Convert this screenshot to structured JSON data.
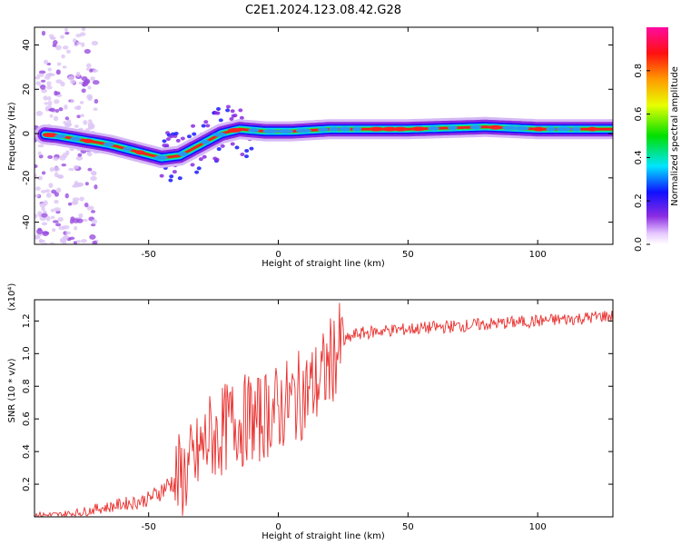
{
  "title": "C2E1.2024.123.08.42.G28",
  "chart_data": [
    {
      "type": "heatmap",
      "xlabel": "Height of straight line (km)",
      "ylabel": "Frequency (Hz)",
      "xlim": [
        -94,
        129
      ],
      "ylim": [
        -50,
        48
      ],
      "xticks": [
        -50,
        0,
        50,
        100
      ],
      "yticks": [
        -40,
        -20,
        0,
        20,
        40
      ],
      "colorbar": {
        "label": "Normalized spectral amplitude",
        "range": [
          0.0,
          1.0
        ],
        "ticks": [
          "0.0",
          "0.2",
          "0.4",
          "0.6",
          "0.8"
        ]
      },
      "ridge": [
        {
          "x": -94,
          "y": 0
        },
        {
          "x": -85,
          "y": -1
        },
        {
          "x": -75,
          "y": -3
        },
        {
          "x": -65,
          "y": -5
        },
        {
          "x": -55,
          "y": -8
        },
        {
          "x": -45,
          "y": -11
        },
        {
          "x": -38,
          "y": -10
        },
        {
          "x": -30,
          "y": -5
        },
        {
          "x": -22,
          "y": 0
        },
        {
          "x": -15,
          "y": 2
        },
        {
          "x": -5,
          "y": 1
        },
        {
          "x": 5,
          "y": 1
        },
        {
          "x": 20,
          "y": 2
        },
        {
          "x": 50,
          "y": 2
        },
        {
          "x": 80,
          "y": 3
        },
        {
          "x": 100,
          "y": 2
        },
        {
          "x": 129,
          "y": 2
        }
      ]
    },
    {
      "type": "line",
      "xlabel": "Height of straight line (km)",
      "ylabel": "SNR (10 * v/v)",
      "multiplier_label": "(x10⁴)",
      "xlim": [
        -94,
        129
      ],
      "ylim": [
        0,
        1.33
      ],
      "xticks": [
        -50,
        0,
        50,
        100
      ],
      "yticks": [
        0.2,
        0.4,
        0.6,
        0.8,
        1.0,
        1.2
      ],
      "series": [
        {
          "color": "#e8302e",
          "x": [
            -94,
            -85,
            -75,
            -70,
            -65,
            -60,
            -55,
            -50,
            -46,
            -42,
            -38,
            -35,
            -32,
            -30,
            -28,
            -26,
            -24,
            -22,
            -20,
            -18,
            -16,
            -14,
            -12,
            -10,
            -8,
            -6,
            -4,
            -2,
            0,
            2,
            4,
            6,
            8,
            10,
            12,
            14,
            16,
            18,
            20,
            22,
            24,
            26,
            28,
            30,
            35,
            40,
            50,
            60,
            70,
            80,
            90,
            100,
            110,
            120,
            125,
            129
          ],
          "y": [
            0.01,
            0.01,
            0.03,
            0.05,
            0.06,
            0.08,
            0.09,
            0.11,
            0.15,
            0.2,
            0.24,
            0.28,
            0.33,
            0.4,
            0.45,
            0.5,
            0.48,
            0.52,
            0.55,
            0.58,
            0.6,
            0.56,
            0.62,
            0.6,
            0.58,
            0.62,
            0.64,
            0.66,
            0.65,
            0.68,
            0.7,
            0.72,
            0.74,
            0.76,
            0.78,
            0.8,
            0.84,
            0.88,
            0.95,
            1.0,
            1.04,
            1.08,
            1.1,
            1.12,
            1.13,
            1.14,
            1.15,
            1.16,
            1.17,
            1.18,
            1.19,
            1.2,
            1.21,
            1.22,
            1.23,
            1.23
          ]
        }
      ]
    }
  ]
}
